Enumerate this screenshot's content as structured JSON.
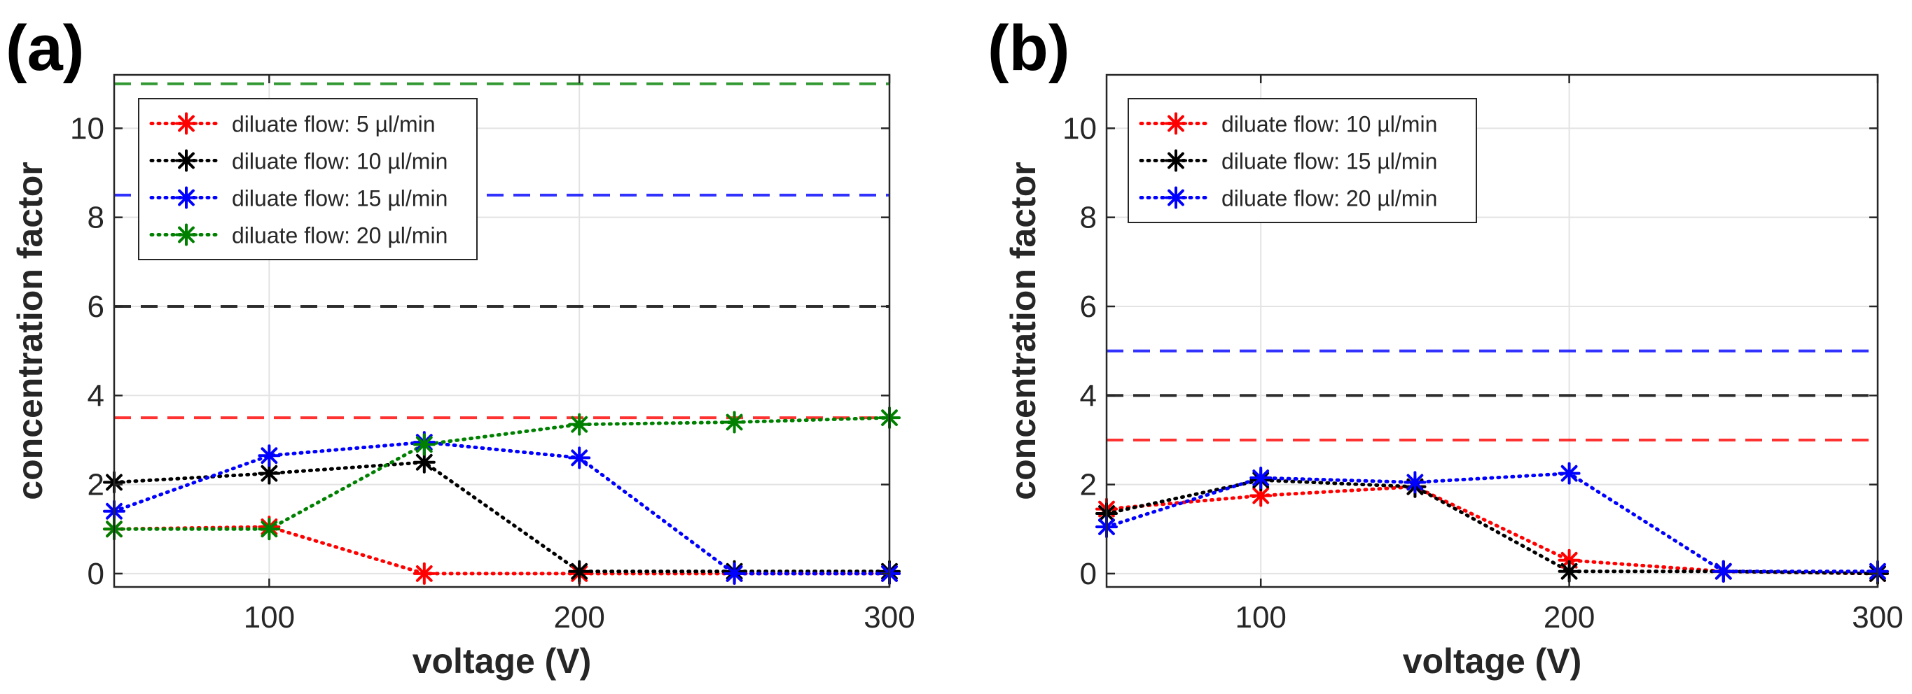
{
  "chart_data": [
    {
      "panel": "(a)",
      "type": "line",
      "xlabel": "voltage (V)",
      "ylabel": "concentration factor",
      "xlim": [
        50,
        300
      ],
      "ylim": [
        -0.3,
        11.2
      ],
      "xticks": [
        100,
        200,
        300
      ],
      "yticks": [
        0,
        2,
        4,
        6,
        8,
        10
      ],
      "grid": true,
      "legend_position": "top-left",
      "x": [
        50,
        100,
        150,
        200,
        250,
        300
      ],
      "series": [
        {
          "name": "diluate flow: 5 µl/min",
          "color": "#ff0000",
          "values": [
            1.0,
            1.05,
            0.0,
            0.0,
            0.0,
            0.0
          ],
          "reference": 3.5
        },
        {
          "name": "diluate flow: 10 µl/min",
          "color": "#000000",
          "values": [
            2.05,
            2.25,
            2.5,
            0.05,
            0.05,
            0.05
          ],
          "reference": 6.0
        },
        {
          "name": "diluate flow: 15 µl/min",
          "color": "#0000ff",
          "values": [
            1.4,
            2.65,
            2.95,
            2.6,
            0.0,
            0.0
          ],
          "reference": 8.5
        },
        {
          "name": "diluate flow: 20 µl/min",
          "color": "#008000",
          "values": [
            1.0,
            1.0,
            2.9,
            3.35,
            3.4,
            3.5
          ],
          "reference": 11.0
        }
      ]
    },
    {
      "panel": "(b)",
      "type": "line",
      "xlabel": "voltage (V)",
      "ylabel": "concentration factor",
      "xlim": [
        50,
        300
      ],
      "ylim": [
        -0.3,
        11.2
      ],
      "xticks": [
        100,
        200,
        300
      ],
      "yticks": [
        0,
        2,
        4,
        6,
        8,
        10
      ],
      "grid": true,
      "legend_position": "top-left",
      "x": [
        50,
        100,
        150,
        200,
        250,
        300
      ],
      "series": [
        {
          "name": "diluate flow: 10 µl/min",
          "color": "#ff0000",
          "values": [
            1.45,
            1.75,
            1.95,
            0.3,
            0.05,
            0.0
          ],
          "reference": 3.0
        },
        {
          "name": "diluate flow: 15 µl/min",
          "color": "#000000",
          "values": [
            1.35,
            2.1,
            1.95,
            0.05,
            0.05,
            0.0
          ],
          "reference": 4.0
        },
        {
          "name": "diluate flow: 20 µl/min",
          "color": "#0000ff",
          "values": [
            1.05,
            2.15,
            2.05,
            2.25,
            0.05,
            0.05
          ],
          "reference": 5.0
        }
      ]
    }
  ]
}
